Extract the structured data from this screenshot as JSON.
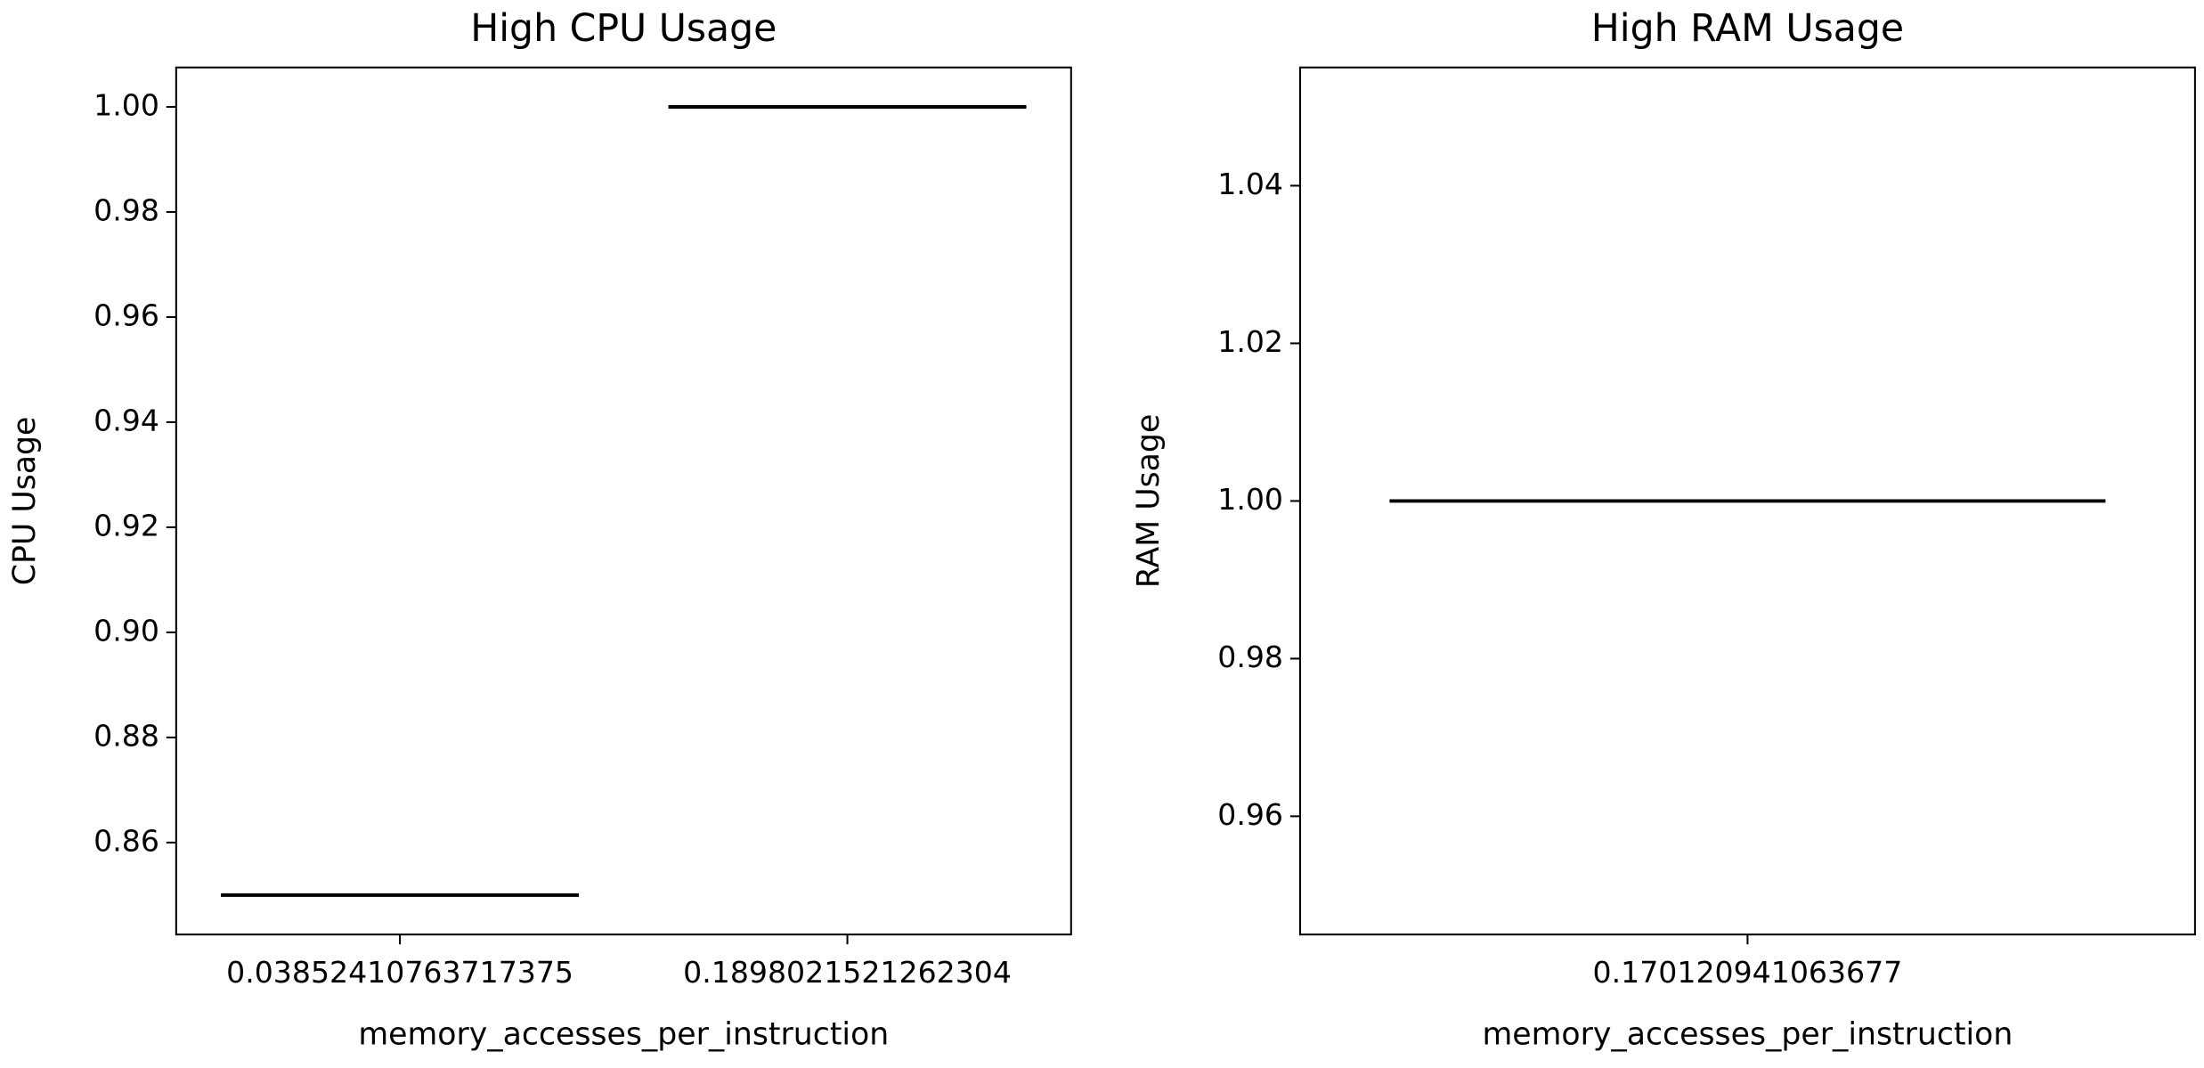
{
  "chart_data": [
    {
      "type": "box",
      "title": "High CPU Usage",
      "x_label": "memory_accesses_per_instruction",
      "y_label": "CPU Usage",
      "categories": [
        "0.03852410763717375",
        "0.1898021521262304"
      ],
      "values": [
        0.85,
        1.0
      ],
      "color": "#000000",
      "ylim": [
        0.8425,
        1.0075
      ],
      "yticks": [
        {
          "value": 0.86,
          "label": "0.86"
        },
        {
          "value": 0.88,
          "label": "0.88"
        },
        {
          "value": 0.9,
          "label": "0.90"
        },
        {
          "value": 0.92,
          "label": "0.92"
        },
        {
          "value": 0.94,
          "label": "0.94"
        },
        {
          "value": 0.96,
          "label": "0.96"
        },
        {
          "value": 0.98,
          "label": "0.98"
        },
        {
          "value": 1.0,
          "label": "1.00"
        }
      ]
    },
    {
      "type": "box",
      "title": "High RAM Usage",
      "x_label": "memory_accesses_per_instruction",
      "y_label": "RAM Usage",
      "categories": [
        "0.170120941063677"
      ],
      "values": [
        1.0
      ],
      "color": "#000000",
      "ylim": [
        0.945,
        1.055
      ],
      "yticks": [
        {
          "value": 0.96,
          "label": "0.96"
        },
        {
          "value": 0.98,
          "label": "0.98"
        },
        {
          "value": 1.0,
          "label": "1.00"
        },
        {
          "value": 1.02,
          "label": "1.02"
        },
        {
          "value": 1.04,
          "label": "1.04"
        }
      ]
    }
  ]
}
